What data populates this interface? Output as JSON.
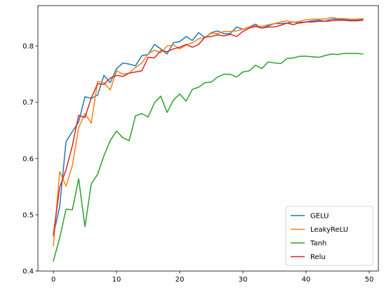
{
  "chart_data": {
    "type": "line",
    "title": "",
    "xlabel": "",
    "ylabel": "",
    "xlim": [
      -2.45,
      51.45
    ],
    "ylim": [
      0.4,
      0.872
    ],
    "xticks": [
      0,
      10,
      20,
      30,
      40,
      50
    ],
    "yticks": [
      0.4,
      0.5,
      0.6,
      0.7,
      0.8
    ],
    "ytick_labels": [
      "0.4",
      "0.5",
      "0.6",
      "0.7",
      "0.8"
    ],
    "grid": false,
    "legend_position": "lower-right",
    "x": [
      0,
      1,
      2,
      3,
      4,
      5,
      6,
      7,
      8,
      9,
      10,
      11,
      12,
      13,
      14,
      15,
      16,
      17,
      18,
      19,
      20,
      21,
      22,
      23,
      24,
      25,
      26,
      27,
      28,
      29,
      30,
      31,
      32,
      33,
      34,
      35,
      36,
      37,
      38,
      39,
      40,
      41,
      42,
      43,
      44,
      45,
      46,
      47,
      48,
      49
    ],
    "series": [
      {
        "name": "GELU",
        "color": "#1f77b4",
        "values": [
          0.463,
          0.515,
          0.63,
          0.648,
          0.665,
          0.71,
          0.707,
          0.713,
          0.748,
          0.735,
          0.76,
          0.77,
          0.768,
          0.765,
          0.783,
          0.785,
          0.803,
          0.795,
          0.786,
          0.806,
          0.808,
          0.817,
          0.81,
          0.824,
          0.815,
          0.824,
          0.827,
          0.822,
          0.822,
          0.834,
          0.83,
          0.834,
          0.839,
          0.832,
          0.836,
          0.84,
          0.84,
          0.841,
          0.843,
          0.841,
          0.843,
          0.845,
          0.846,
          0.844,
          0.848,
          0.848,
          0.847,
          0.846,
          0.846,
          0.847
        ]
      },
      {
        "name": "LeakyReLU",
        "color": "#ff7f0e",
        "values": [
          0.445,
          0.577,
          0.551,
          0.587,
          0.655,
          0.68,
          0.663,
          0.737,
          0.735,
          0.722,
          0.756,
          0.75,
          0.752,
          0.762,
          0.77,
          0.786,
          0.793,
          0.788,
          0.8,
          0.802,
          0.795,
          0.802,
          0.806,
          0.813,
          0.815,
          0.823,
          0.822,
          0.826,
          0.826,
          0.827,
          0.83,
          0.834,
          0.836,
          0.835,
          0.838,
          0.84,
          0.843,
          0.845,
          0.842,
          0.844,
          0.847,
          0.848,
          0.848,
          0.848,
          0.851,
          0.849,
          0.849,
          0.848,
          0.848,
          0.849
        ]
      },
      {
        "name": "Tanh",
        "color": "#2ca02c",
        "values": [
          0.418,
          0.459,
          0.51,
          0.509,
          0.564,
          0.479,
          0.555,
          0.572,
          0.605,
          0.632,
          0.649,
          0.637,
          0.632,
          0.676,
          0.68,
          0.674,
          0.699,
          0.711,
          0.682,
          0.704,
          0.715,
          0.702,
          0.723,
          0.727,
          0.735,
          0.736,
          0.745,
          0.75,
          0.75,
          0.745,
          0.754,
          0.756,
          0.766,
          0.76,
          0.772,
          0.77,
          0.769,
          0.778,
          0.779,
          0.782,
          0.782,
          0.781,
          0.78,
          0.783,
          0.786,
          0.785,
          0.787,
          0.787,
          0.787,
          0.786
        ]
      },
      {
        "name": "Relu",
        "color": "#d62728",
        "values": [
          0.465,
          0.549,
          0.58,
          0.623,
          0.677,
          0.673,
          0.708,
          0.733,
          0.732,
          0.743,
          0.748,
          0.746,
          0.752,
          0.754,
          0.756,
          0.78,
          0.779,
          0.792,
          0.79,
          0.795,
          0.798,
          0.803,
          0.798,
          0.803,
          0.816,
          0.817,
          0.82,
          0.818,
          0.821,
          0.817,
          0.826,
          0.832,
          0.835,
          0.832,
          0.834,
          0.834,
          0.837,
          0.841,
          0.838,
          0.842,
          0.843,
          0.843,
          0.844,
          0.844,
          0.845,
          0.846,
          0.846,
          0.845,
          0.845,
          0.846
        ]
      }
    ]
  }
}
